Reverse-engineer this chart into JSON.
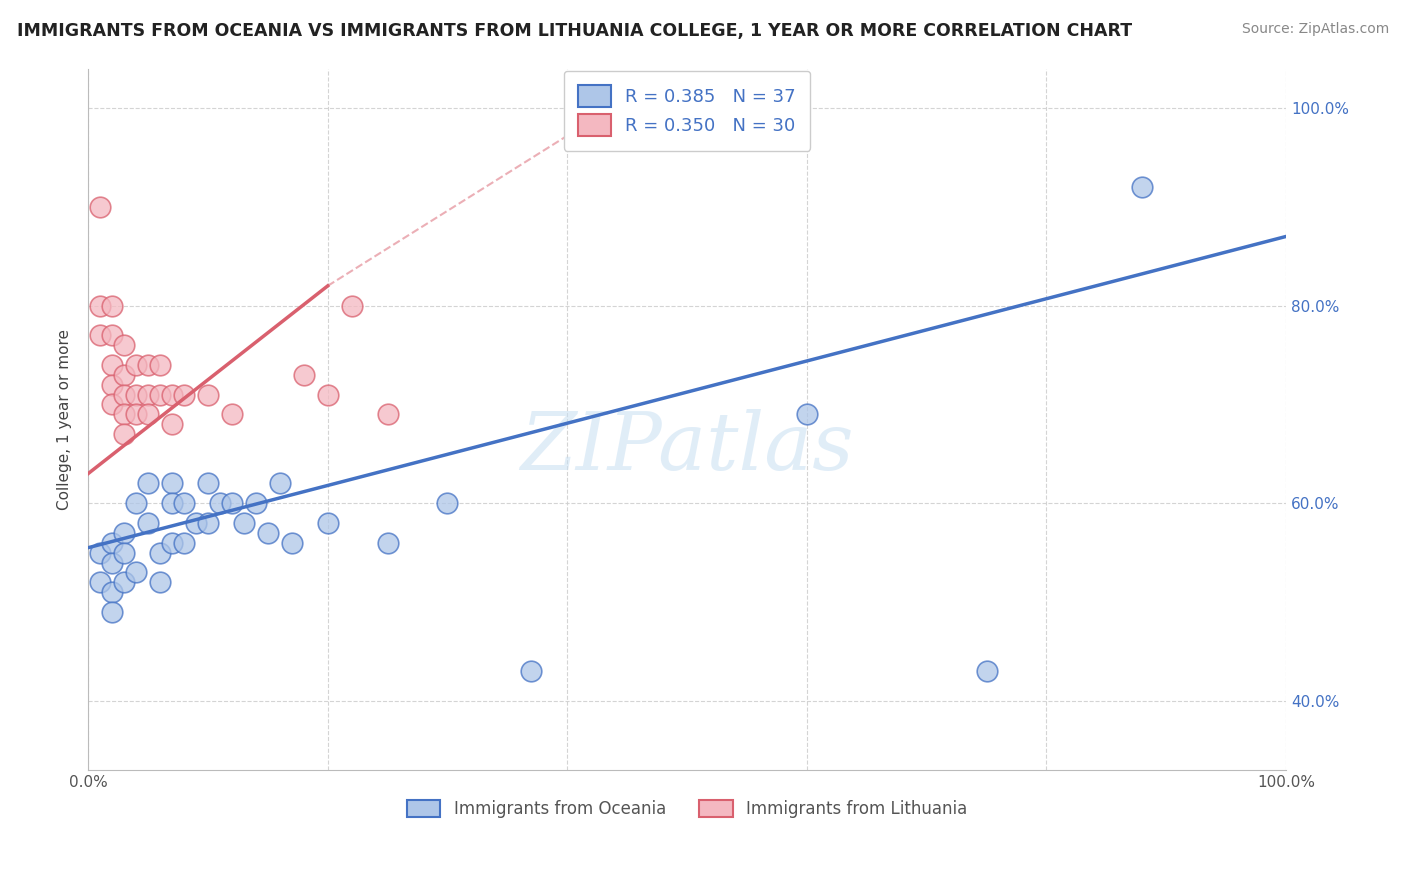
{
  "title": "IMMIGRANTS FROM OCEANIA VS IMMIGRANTS FROM LITHUANIA COLLEGE, 1 YEAR OR MORE CORRELATION CHART",
  "source": "Source: ZipAtlas.com",
  "ylabel": "College, 1 year or more",
  "xlim": [
    0.0,
    1.0
  ],
  "ylim": [
    0.33,
    1.04
  ],
  "x_ticks": [
    0.0,
    0.2,
    0.4,
    0.6,
    0.8,
    1.0
  ],
  "x_tick_labels": [
    "0.0%",
    "",
    "",
    "",
    "",
    "100.0%"
  ],
  "y_ticks_right": [
    0.4,
    0.6,
    0.8,
    1.0
  ],
  "y_tick_labels_right": [
    "40.0%",
    "60.0%",
    "80.0%",
    "100.0%"
  ],
  "legend_labels": [
    "Immigrants from Oceania",
    "Immigrants from Lithuania"
  ],
  "R_oceania": 0.385,
  "N_oceania": 37,
  "R_lithuania": 0.35,
  "N_lithuania": 30,
  "oceania_color": "#aec6e8",
  "lithuania_color": "#f4b8c1",
  "trend_oceania_color": "#4472c4",
  "trend_lithuania_color": "#d9606e",
  "background_color": "#ffffff",
  "grid_color": "#d0d0d0",
  "watermark": "ZIPatlas",
  "oceania_x": [
    0.01,
    0.01,
    0.02,
    0.02,
    0.02,
    0.02,
    0.03,
    0.03,
    0.03,
    0.04,
    0.04,
    0.05,
    0.05,
    0.06,
    0.06,
    0.07,
    0.07,
    0.07,
    0.08,
    0.08,
    0.09,
    0.1,
    0.1,
    0.11,
    0.12,
    0.13,
    0.14,
    0.15,
    0.16,
    0.17,
    0.2,
    0.25,
    0.3,
    0.37,
    0.6,
    0.75,
    0.88
  ],
  "oceania_y": [
    0.55,
    0.52,
    0.56,
    0.54,
    0.51,
    0.49,
    0.57,
    0.55,
    0.52,
    0.6,
    0.53,
    0.62,
    0.58,
    0.55,
    0.52,
    0.62,
    0.6,
    0.56,
    0.6,
    0.56,
    0.58,
    0.62,
    0.58,
    0.6,
    0.6,
    0.58,
    0.6,
    0.57,
    0.62,
    0.56,
    0.58,
    0.56,
    0.6,
    0.43,
    0.69,
    0.43,
    0.92
  ],
  "lithuania_x": [
    0.01,
    0.01,
    0.01,
    0.02,
    0.02,
    0.02,
    0.02,
    0.02,
    0.03,
    0.03,
    0.03,
    0.03,
    0.03,
    0.04,
    0.04,
    0.04,
    0.05,
    0.05,
    0.05,
    0.06,
    0.06,
    0.07,
    0.07,
    0.08,
    0.1,
    0.12,
    0.18,
    0.2,
    0.22,
    0.25
  ],
  "lithuania_y": [
    0.9,
    0.8,
    0.77,
    0.8,
    0.77,
    0.74,
    0.72,
    0.7,
    0.76,
    0.73,
    0.71,
    0.69,
    0.67,
    0.74,
    0.71,
    0.69,
    0.74,
    0.71,
    0.69,
    0.74,
    0.71,
    0.71,
    0.68,
    0.71,
    0.71,
    0.69,
    0.73,
    0.71,
    0.8,
    0.69
  ],
  "trend_oceania_x_start": 0.0,
  "trend_oceania_x_end": 1.0,
  "trend_oceania_y_start": 0.555,
  "trend_oceania_y_end": 0.87,
  "trend_lithuania_solid_x_start": 0.0,
  "trend_lithuania_solid_x_end": 0.2,
  "trend_lithuania_solid_y_start": 0.63,
  "trend_lithuania_solid_y_end": 0.82,
  "trend_lithuania_dashed_x_start": 0.2,
  "trend_lithuania_dashed_x_end": 0.45,
  "trend_lithuania_dashed_y_start": 0.82,
  "trend_lithuania_dashed_y_end": 1.01
}
